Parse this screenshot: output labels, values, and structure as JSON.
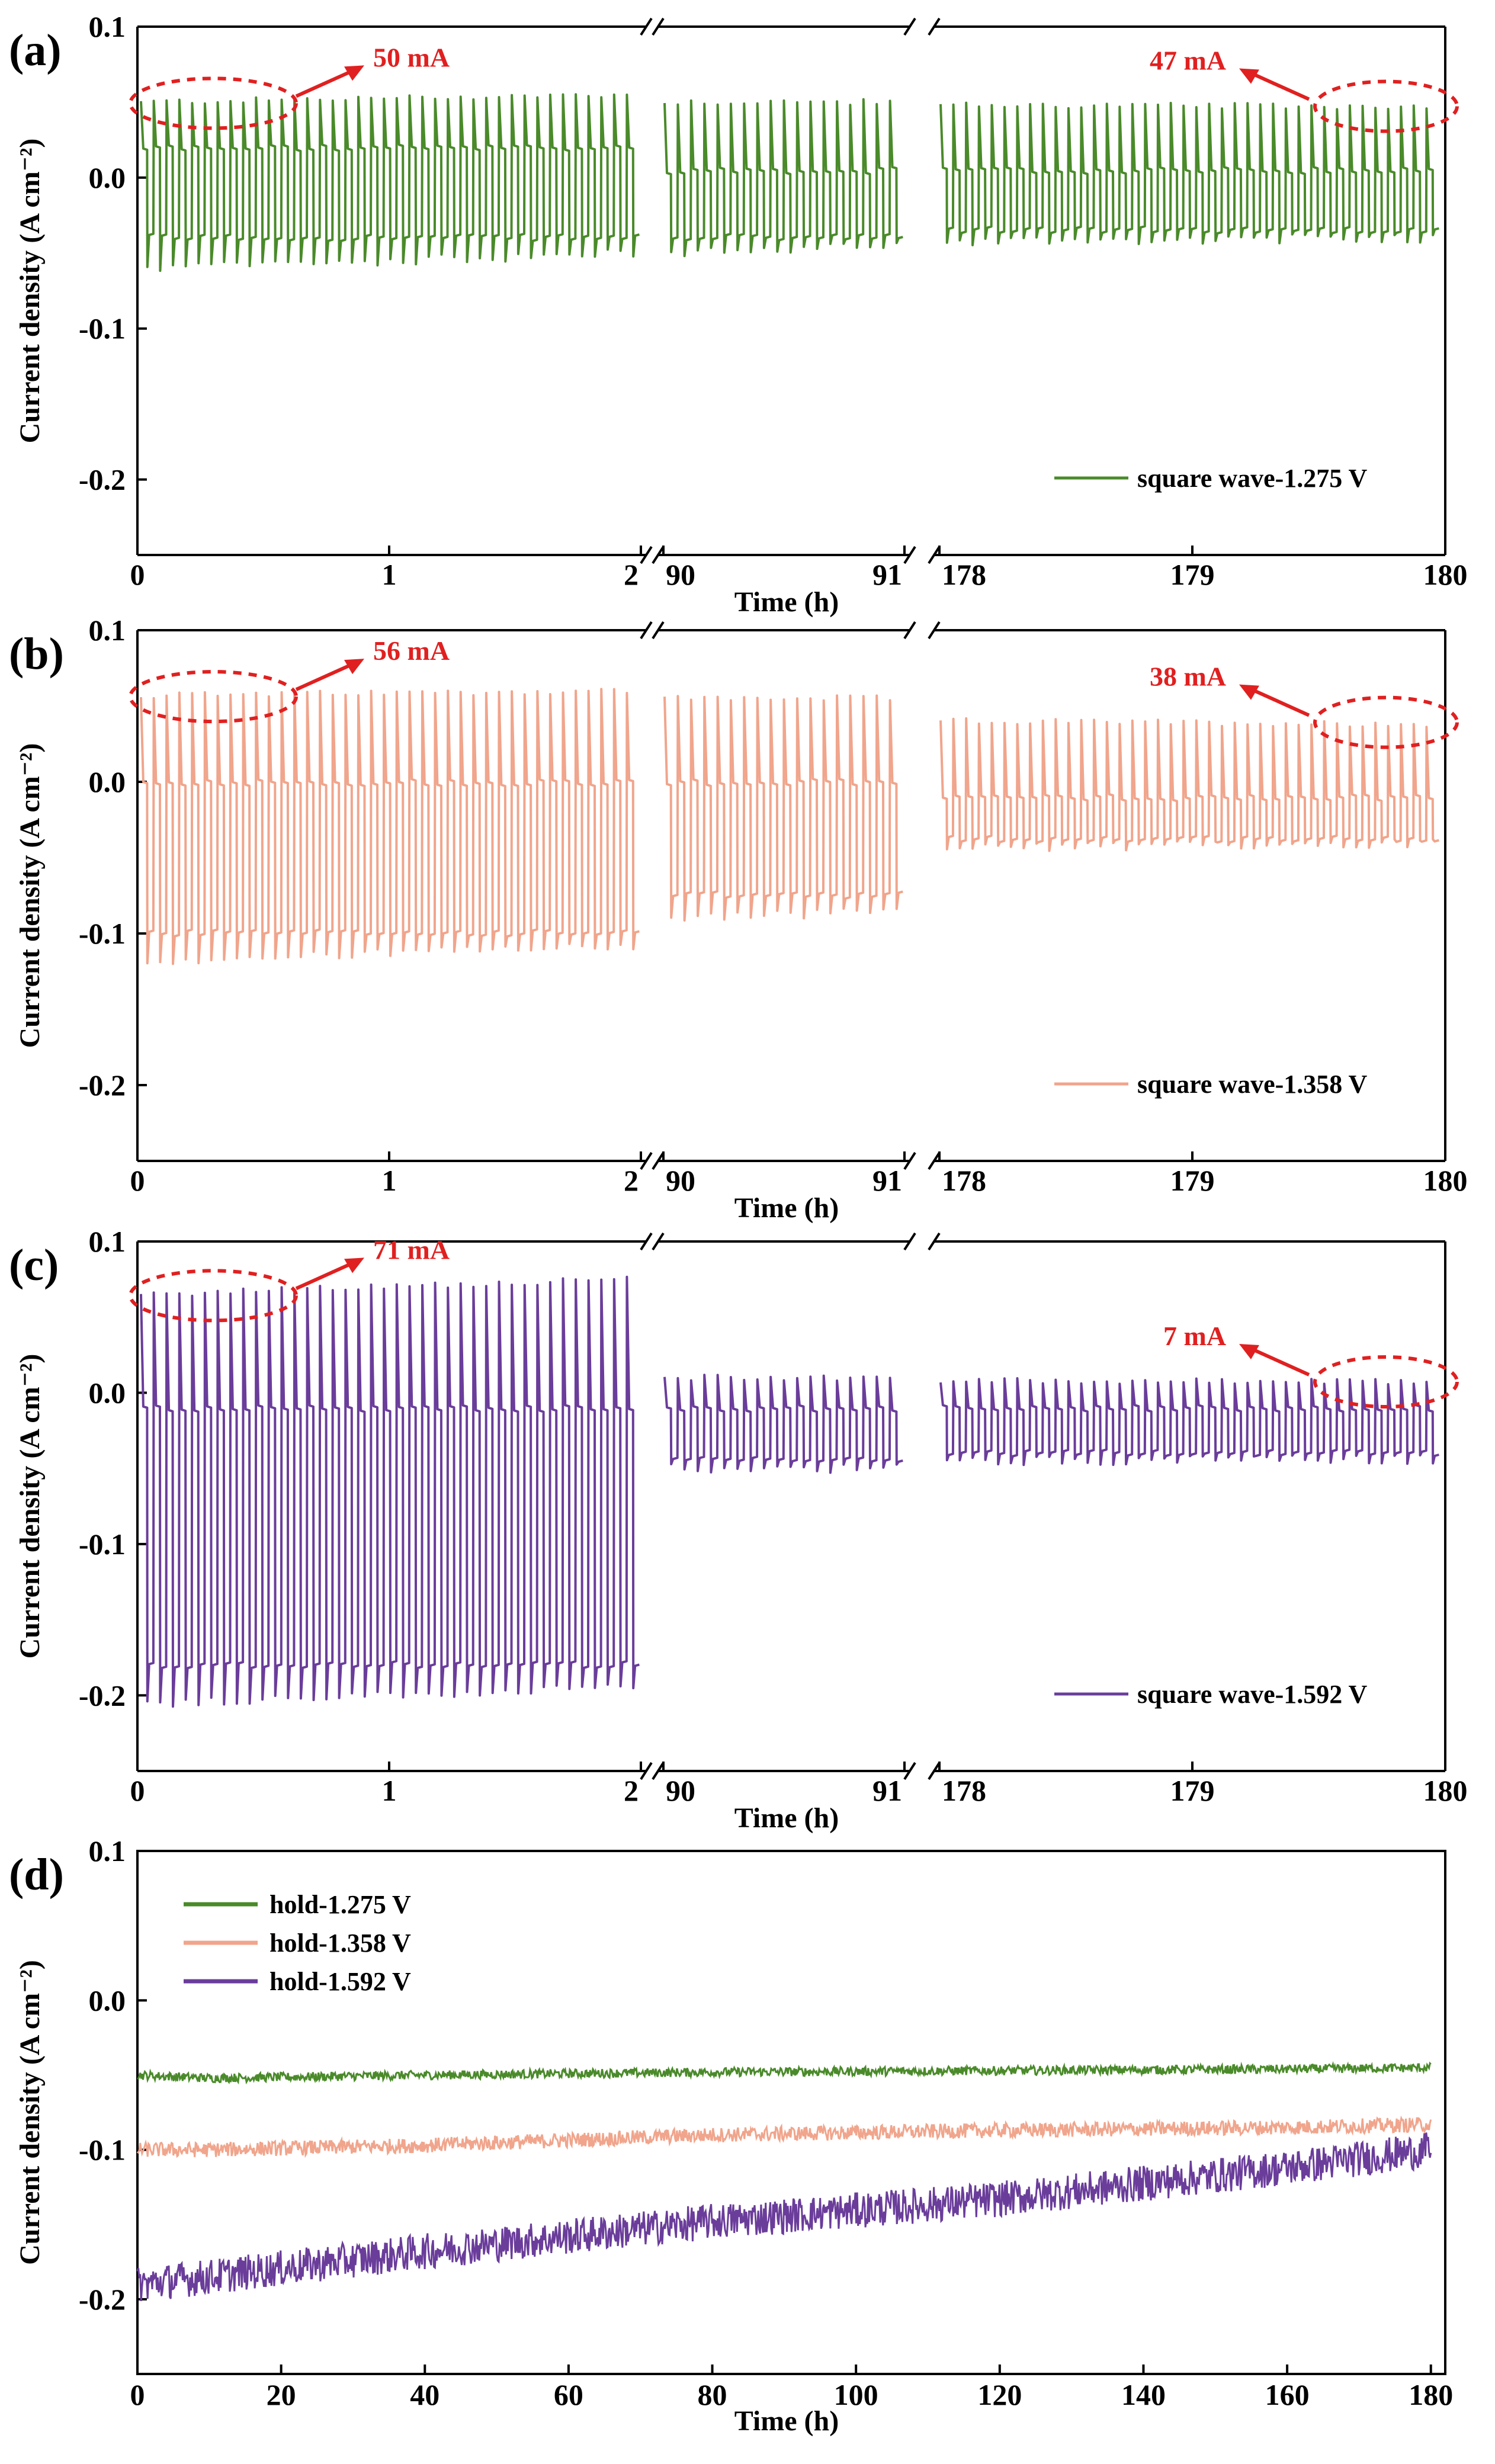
{
  "chart_data": [
    {
      "type": "line",
      "panel": "(a)",
      "xlabel": "Time (h)",
      "ylabel": "Current density (A cm⁻²)",
      "ylim": [
        -0.25,
        0.1
      ],
      "yticks": [
        "0.1",
        "0.0",
        "-0.1",
        "-0.2"
      ],
      "x_break_segments": [
        {
          "range": [
            0,
            2
          ],
          "ticks": [
            "0",
            "1",
            "2"
          ]
        },
        {
          "range": [
            90,
            91
          ],
          "ticks": [
            "90",
            "91"
          ]
        },
        {
          "range": [
            178,
            180
          ],
          "ticks": [
            "178",
            "179",
            "180"
          ]
        }
      ],
      "color": "#4a8a2a",
      "series": [
        {
          "name": "square wave-1.275 V",
          "segments": [
            {
              "cycles": 39,
              "high_start": 0.05,
              "high_end": 0.055,
              "low_start": -0.06,
              "low_end": -0.05,
              "mid_upper": 0.02,
              "mid_lower": -0.04
            },
            {
              "cycles": 18,
              "high_start": 0.05,
              "high_end": 0.05,
              "low_start": -0.05,
              "low_end": -0.045,
              "mid_upper": 0.005,
              "mid_lower": -0.04
            },
            {
              "cycles": 39,
              "high_start": 0.048,
              "high_end": 0.047,
              "low_start": -0.042,
              "low_end": -0.04,
              "mid_upper": 0.005,
              "mid_lower": -0.035
            }
          ]
        }
      ],
      "annotations": [
        "50 mA",
        "47 mA"
      ],
      "legend": "bottom-right"
    },
    {
      "type": "line",
      "panel": "(b)",
      "xlabel": "Time (h)",
      "ylabel": "Current density (A cm⁻²)",
      "ylim": [
        -0.25,
        0.1
      ],
      "yticks": [
        "0.1",
        "0.0",
        "-0.1",
        "-0.2"
      ],
      "x_break_segments": [
        {
          "range": [
            0,
            2
          ],
          "ticks": [
            "0",
            "1",
            "2"
          ]
        },
        {
          "range": [
            90,
            91
          ],
          "ticks": [
            "90",
            "91"
          ]
        },
        {
          "range": [
            178,
            180
          ],
          "ticks": [
            "178",
            "179",
            "180"
          ]
        }
      ],
      "color": "#f0a58c",
      "series": [
        {
          "name": "square wave-1.358 V",
          "segments": [
            {
              "cycles": 39,
              "high_start": 0.057,
              "high_end": 0.06,
              "low_start": -0.118,
              "low_end": -0.108,
              "mid_upper": 0.0,
              "mid_lower": -0.1
            },
            {
              "cycles": 18,
              "high_start": 0.055,
              "high_end": 0.055,
              "low_start": -0.09,
              "low_end": -0.085,
              "mid_upper": 0.0,
              "mid_lower": -0.075
            },
            {
              "cycles": 39,
              "high_start": 0.04,
              "high_end": 0.038,
              "low_start": -0.044,
              "low_end": -0.04,
              "mid_upper": -0.01,
              "mid_lower": -0.038
            }
          ]
        }
      ],
      "annotations": [
        "56 mA",
        "38 mA"
      ],
      "legend": "bottom-right"
    },
    {
      "type": "line",
      "panel": "(c)",
      "xlabel": "Time (h)",
      "ylabel": "Current density (A cm⁻²)",
      "ylim": [
        -0.25,
        0.1
      ],
      "yticks": [
        "0.1",
        "0.0",
        "-0.1",
        "-0.2"
      ],
      "x_break_segments": [
        {
          "range": [
            0,
            2
          ],
          "ticks": [
            "0",
            "1",
            "2"
          ]
        },
        {
          "range": [
            90,
            91
          ],
          "ticks": [
            "90",
            "91"
          ]
        },
        {
          "range": [
            178,
            180
          ],
          "ticks": [
            "178",
            "179",
            "180"
          ]
        }
      ],
      "color": "#6a3d9a",
      "series": [
        {
          "name": "square wave-1.592 V",
          "segments": [
            {
              "cycles": 39,
              "high_start": 0.065,
              "high_end": 0.075,
              "low_start": -0.205,
              "low_end": -0.195,
              "mid_upper": -0.01,
              "mid_lower": -0.18
            },
            {
              "cycles": 18,
              "high_start": 0.01,
              "high_end": 0.01,
              "low_start": -0.05,
              "low_end": -0.05,
              "mid_upper": -0.01,
              "mid_lower": -0.045
            },
            {
              "cycles": 39,
              "high_start": 0.008,
              "high_end": 0.007,
              "low_start": -0.045,
              "low_end": -0.044,
              "mid_upper": -0.01,
              "mid_lower": -0.04
            }
          ]
        }
      ],
      "annotations": [
        "71 mA",
        "7 mA"
      ],
      "legend": "bottom-right"
    },
    {
      "type": "line",
      "panel": "(d)",
      "xlabel": "Time (h)",
      "ylabel": "Current density (A cm⁻²)",
      "xlim": [
        0,
        182
      ],
      "ylim": [
        -0.25,
        0.1
      ],
      "xticks": [
        "0",
        "20",
        "40",
        "60",
        "80",
        "100",
        "120",
        "140",
        "160",
        "180"
      ],
      "yticks": [
        "0.1",
        "0.0",
        "-0.1",
        "-0.2"
      ],
      "series": [
        {
          "name": "hold-1.275 V",
          "color": "#4a8a2a",
          "x": [
            0,
            10,
            40,
            80,
            120,
            160,
            180
          ],
          "y": [
            -0.05,
            -0.052,
            -0.05,
            -0.048,
            -0.047,
            -0.046,
            -0.045
          ],
          "noise": 0.003
        },
        {
          "name": "hold-1.358 V",
          "color": "#f0a58c",
          "x": [
            0,
            10,
            40,
            80,
            120,
            160,
            180
          ],
          "y": [
            -0.1,
            -0.1,
            -0.097,
            -0.09,
            -0.087,
            -0.085,
            -0.083
          ],
          "noise": 0.005
        },
        {
          "name": "hold-1.592 V",
          "color": "#6a3d9a",
          "x": [
            0,
            10,
            40,
            80,
            120,
            160,
            180
          ],
          "y": [
            -0.19,
            -0.185,
            -0.168,
            -0.148,
            -0.133,
            -0.112,
            -0.1
          ],
          "noise": 0.012
        }
      ],
      "legend": "top-left"
    }
  ]
}
